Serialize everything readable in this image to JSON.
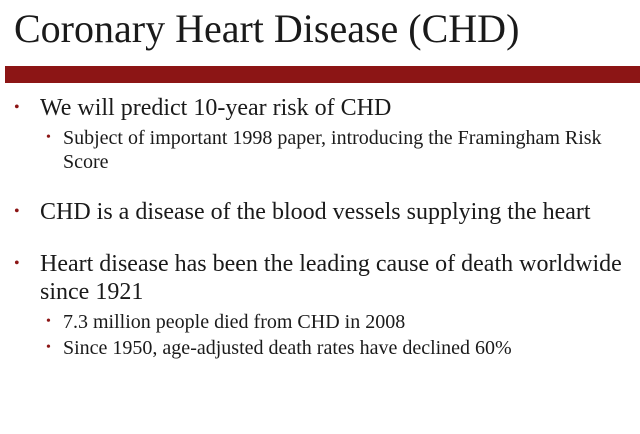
{
  "slide": {
    "title": "Coronary Heart Disease (CHD)",
    "accent_color": "#8c1515",
    "bullet_glyph": "•",
    "bullets": [
      {
        "text": "We will predict 10-year risk of CHD",
        "subs": [
          "Subject of important 1998 paper, introducing the Framingham Risk Score"
        ]
      },
      {
        "text": "CHD is a disease of the blood vessels supplying the heart",
        "subs": []
      },
      {
        "text": "Heart disease has been the leading cause of death worldwide since 1921",
        "subs": [
          "7.3 million people died from CHD in 2008",
          "Since 1950, age-adjusted death rates have declined 60%"
        ]
      }
    ]
  }
}
